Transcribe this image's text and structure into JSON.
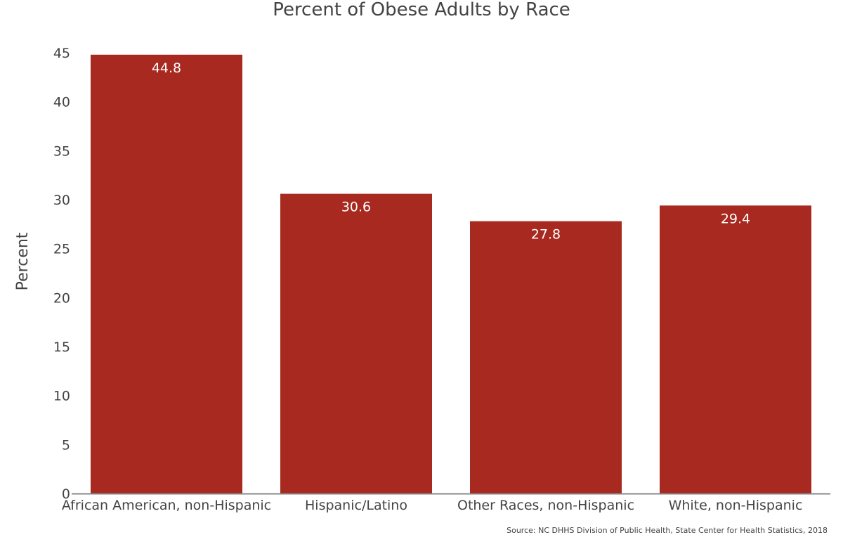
{
  "chart_data": {
    "type": "bar",
    "title": "Percent of Obese Adults by Race",
    "xlabel": "",
    "ylabel": "Percent",
    "categories": [
      "African American, non-Hispanic",
      "Hispanic/Latino",
      "Other Races, non-Hispanic",
      "White, non-Hispanic"
    ],
    "values": [
      44.8,
      30.6,
      27.8,
      29.4
    ],
    "data_labels": [
      "44.8",
      "30.6",
      "27.8",
      "29.4"
    ],
    "ylim": [
      0,
      45
    ],
    "yticks": [
      0,
      5,
      10,
      15,
      20,
      25,
      30,
      35,
      40,
      45
    ],
    "grid": false,
    "legend": "none",
    "bar_color": "#a8291f",
    "axis_color": "#888888",
    "text_color": "#444444",
    "source": "Source: NC DHHS Division of Public Health, State Center for Health Statistics, 2018"
  }
}
